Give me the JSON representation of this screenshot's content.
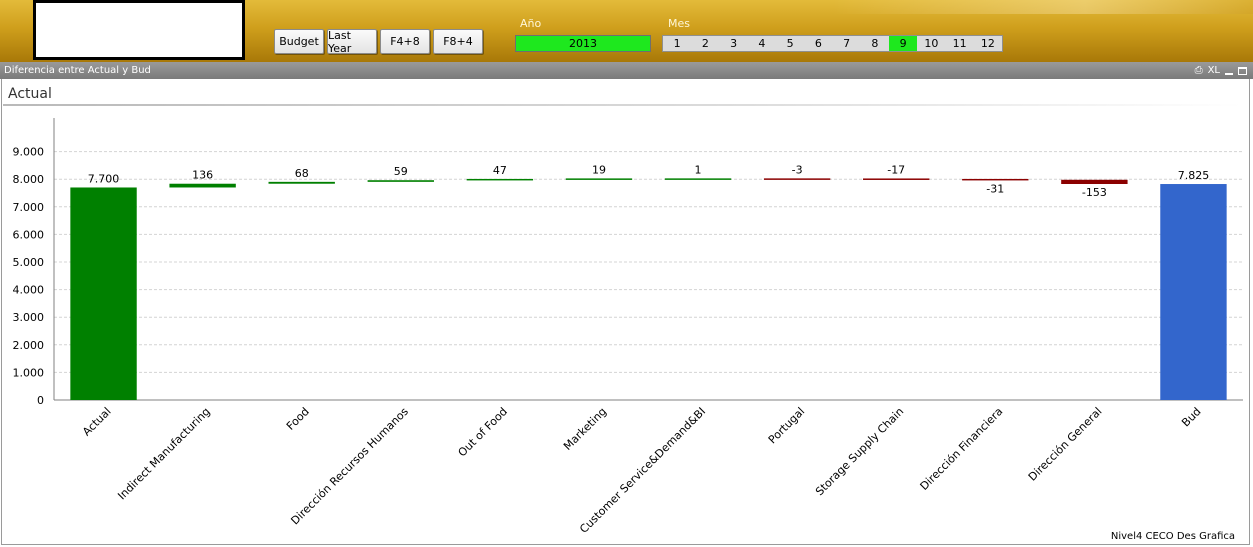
{
  "header": {
    "buttons": [
      {
        "label": "Budget"
      },
      {
        "label": "Last Year"
      },
      {
        "label": "F4+8"
      },
      {
        "label": "F8+4"
      }
    ],
    "year_label": "Año",
    "year_value": "2013",
    "month_label": "Mes",
    "months": [
      "1",
      "2",
      "3",
      "4",
      "5",
      "6",
      "7",
      "8",
      "9",
      "10",
      "11",
      "12"
    ],
    "selected_month": "9",
    "accent_color": "#1ee81e"
  },
  "panel": {
    "caption": "Diferencia entre Actual y Bud",
    "caption_icons": [
      "print-icon",
      "xl-icon",
      "minimize-icon",
      "maximize-icon"
    ],
    "xl_label": "XL",
    "chart_title": "Actual",
    "footer": "Nivel4 CECO Des Grafica"
  },
  "chart_data": {
    "type": "bar",
    "subtype": "waterfall",
    "categories": [
      "Actual",
      "Indirect Manufacturing",
      "Food",
      "Dirección Recursos Humanos",
      "Out of Food",
      "Marketing",
      "Customer Service&Demand&BI",
      "Portugal",
      "Storage Supply Chain",
      "Dirección Financiera",
      "Dirección General",
      "Bud"
    ],
    "values": [
      7700,
      136,
      68,
      59,
      47,
      19,
      1,
      -3,
      -17,
      -31,
      -153,
      7825
    ],
    "labels": [
      "7.700",
      "136",
      "68",
      "59",
      "47",
      "19",
      "1",
      "-3",
      "-17",
      "-31",
      "-153",
      "7.825"
    ],
    "bar_kind": [
      "total",
      "delta",
      "delta",
      "delta",
      "delta",
      "delta",
      "delta",
      "delta",
      "delta",
      "delta",
      "delta",
      "total"
    ],
    "yticks": [
      0,
      1000,
      2000,
      3000,
      4000,
      5000,
      6000,
      7000,
      8000,
      9000
    ],
    "ytick_labels": [
      "0",
      "1.000",
      "2.000",
      "3.000",
      "4.000",
      "5.000",
      "6.000",
      "7.000",
      "8.000",
      "9.000"
    ],
    "ylim": [
      0,
      9500
    ],
    "grid": true,
    "colors": {
      "actual": "#008000",
      "positive": "#008000",
      "negative": "#8b0000",
      "bud": "#3366cc"
    }
  }
}
